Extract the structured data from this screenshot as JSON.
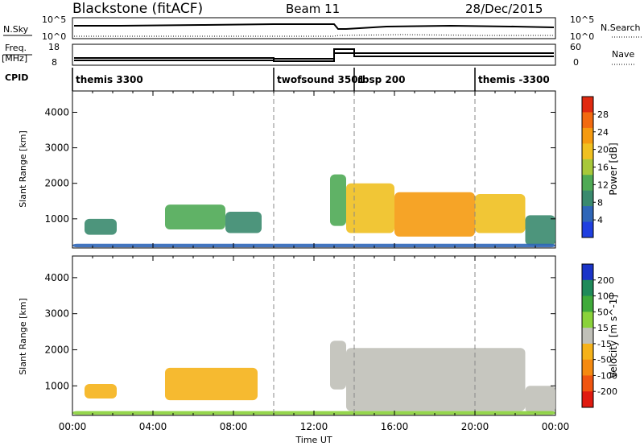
{
  "header": {
    "title": "Blackstone (fitACF)",
    "beam": "Beam 11",
    "date": "28/Dec/2015"
  },
  "top_panels": {
    "nsky_label": "N.Sky",
    "nsky_ticks": [
      "10^5",
      "10^0"
    ],
    "nsearch_label": "N.Search",
    "nsearch_ticks": [
      "10^5",
      "10^0"
    ],
    "freq_label": "Freq.",
    "freq_unit": "[MHz]",
    "freq_ticks": [
      "18",
      "8"
    ],
    "nave_label": "Nave",
    "nave_ticks": [
      "60",
      "0"
    ],
    "cpid_label": "CPID"
  },
  "cpid_segments": [
    {
      "start": 0,
      "end": 10,
      "label": "themis 3300"
    },
    {
      "start": 10,
      "end": 14,
      "label": "twofsound 3501"
    },
    {
      "start": 14,
      "end": 20,
      "label": "rbsp 200"
    },
    {
      "start": 20,
      "end": 24,
      "label": "themis -3300"
    }
  ],
  "chart_data": [
    {
      "type": "heatmap",
      "panel": "power",
      "xlabel": "",
      "ylabel": "Slant Range [km]",
      "xlim": [
        0,
        24
      ],
      "ylim": [
        180,
        4600
      ],
      "yticks": [
        1000,
        2000,
        3000,
        4000
      ],
      "colorbar": {
        "label": "Power [dB]",
        "range": [
          0,
          32
        ],
        "tick_values": [
          4,
          8,
          12,
          16,
          20,
          24,
          28
        ],
        "tick_labels": [
          "4",
          "8",
          "12",
          "16",
          "20",
          "24",
          "28"
        ],
        "colors": [
          "#1f3fe0",
          "#2f66b8",
          "#3a8a6e",
          "#4faa55",
          "#a8c83a",
          "#f0c020",
          "#f59a10",
          "#f26a10",
          "#e02a10"
        ]
      },
      "regions": [
        {
          "t0": 0.6,
          "t1": 2.2,
          "r0": 550,
          "r1": 1000,
          "value": 8
        },
        {
          "t0": 4.6,
          "t1": 7.6,
          "r0": 700,
          "r1": 1400,
          "value": 14
        },
        {
          "t0": 7.6,
          "t1": 9.4,
          "r0": 600,
          "r1": 1200,
          "value": 10
        },
        {
          "t0": 12.8,
          "t1": 13.6,
          "r0": 800,
          "r1": 2250,
          "value": 12
        },
        {
          "t0": 13.6,
          "t1": 16.0,
          "r0": 600,
          "r1": 2000,
          "value": 18
        },
        {
          "t0": 16.0,
          "t1": 20.0,
          "r0": 500,
          "r1": 1750,
          "value": 22
        },
        {
          "t0": 20.0,
          "t1": 22.5,
          "r0": 600,
          "r1": 1700,
          "value": 18
        },
        {
          "t0": 22.5,
          "t1": 24.0,
          "r0": 250,
          "r1": 1100,
          "value": 10
        },
        {
          "t0": 0.0,
          "t1": 24.0,
          "r0": 200,
          "r1": 300,
          "value": 6
        }
      ]
    },
    {
      "type": "heatmap",
      "panel": "velocity",
      "xlabel": "Time UT",
      "ylabel": "Slant Range [km]",
      "xlim": [
        0,
        24
      ],
      "ylim": [
        180,
        4600
      ],
      "yticks": [
        1000,
        2000,
        3000,
        4000
      ],
      "xticks": [
        "00:00",
        "04:00",
        "08:00",
        "12:00",
        "16:00",
        "20:00",
        "00:00"
      ],
      "colorbar": {
        "label": "Velocity [m s^-1]",
        "range": [
          -250,
          250
        ],
        "tick_values": [
          200,
          100,
          50,
          15,
          -15,
          -50,
          -100,
          -200
        ],
        "tick_labels": [
          "200",
          "100",
          "50",
          "15",
          "-15",
          "-50",
          "-100",
          "-200"
        ],
        "colors": [
          "#1a34c8",
          "#1f8a5a",
          "#3faa3a",
          "#8ad23a",
          "#c0c0b8",
          "#f5b21a",
          "#f58a10",
          "#f05510",
          "#e01a10"
        ]
      },
      "regions": [
        {
          "t0": 0.6,
          "t1": 2.2,
          "r0": 650,
          "r1": 1050,
          "value": -60
        },
        {
          "t0": 4.6,
          "t1": 9.2,
          "r0": 600,
          "r1": 1500,
          "value": -60
        },
        {
          "t0": 12.8,
          "t1": 13.6,
          "r0": 900,
          "r1": 2250,
          "value": 0
        },
        {
          "t0": 13.6,
          "t1": 22.5,
          "r0": 300,
          "r1": 2050,
          "value": 0
        },
        {
          "t0": 22.5,
          "t1": 24.0,
          "r0": 250,
          "r1": 1000,
          "value": 10
        },
        {
          "t0": 0.0,
          "t1": 24.0,
          "r0": 200,
          "r1": 300,
          "value": 30
        }
      ]
    }
  ]
}
